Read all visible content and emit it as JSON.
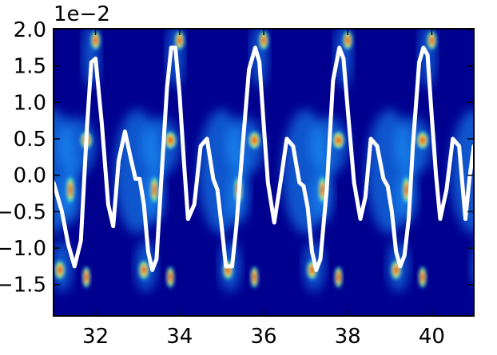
{
  "chart_data": {
    "type": "heatmap",
    "title": "",
    "xlabel": "",
    "ylabel": "",
    "y_exponent_label": "1e−2",
    "xlim": [
      31.0,
      41.0
    ],
    "ylim": [
      -0.0193,
      0.0201
    ],
    "x_ticks": [
      32,
      34,
      36,
      38,
      40
    ],
    "x_tick_labels": [
      "32",
      "34",
      "36",
      "38",
      "40"
    ],
    "y_ticks": [
      -0.015,
      -0.01,
      -0.005,
      0.0,
      0.005,
      0.01,
      0.015,
      0.02
    ],
    "y_tick_labels": [
      "−1.5",
      "−1.0",
      "−0.5",
      "0.0",
      "0.5",
      "1.0",
      "1.5",
      "2.0"
    ],
    "grid": false,
    "colormap": "jet",
    "heatmap_background": "#00008f",
    "curve_color": "#ffffff",
    "period": 2.0,
    "series": [
      {
        "x": [
          31.0,
          31.2,
          31.35,
          31.5,
          31.65,
          31.8,
          31.9,
          32.0,
          32.15,
          32.3,
          32.42,
          32.55,
          32.7,
          32.85,
          32.95,
          33.05,
          33.15,
          33.25,
          33.35,
          33.45,
          33.55,
          33.7,
          33.8,
          33.9,
          34.0,
          34.1,
          34.2,
          34.35,
          34.5,
          34.65,
          34.8,
          34.9,
          35.0,
          35.1,
          35.25,
          35.35,
          35.5,
          35.65,
          35.8,
          35.9,
          36.0,
          36.1,
          36.25,
          36.4,
          36.55,
          36.7,
          36.85,
          36.95,
          37.05,
          37.15,
          37.25,
          37.35,
          37.5,
          37.65,
          37.8,
          37.9,
          38.0,
          38.15,
          38.3,
          38.42,
          38.55,
          38.7,
          38.85,
          38.95,
          39.05,
          39.15,
          39.25,
          39.35,
          39.45,
          39.55,
          39.7,
          39.8,
          39.9,
          40.0,
          40.1,
          40.2,
          40.35,
          40.5,
          40.65,
          40.8,
          40.9,
          41.0
        ],
        "y": [
          -0.001,
          -0.005,
          -0.0095,
          -0.0125,
          -0.009,
          0.007,
          0.0155,
          0.016,
          0.007,
          -0.004,
          -0.007,
          0.002,
          0.006,
          0.002,
          -0.0005,
          -0.0005,
          -0.004,
          -0.0105,
          -0.013,
          -0.0115,
          -0.002,
          0.012,
          0.0175,
          0.0175,
          0.011,
          0.002,
          -0.006,
          -0.004,
          0.004,
          0.005,
          -0.0005,
          -0.002,
          -0.007,
          -0.0125,
          -0.0125,
          -0.007,
          0.004,
          0.0145,
          0.0175,
          0.0155,
          0.007,
          -0.001,
          -0.0065,
          -0.001,
          0.005,
          0.004,
          -0.001,
          -0.0015,
          -0.0045,
          -0.0105,
          -0.013,
          -0.0115,
          -0.002,
          0.013,
          0.0175,
          0.016,
          0.009,
          -0.001,
          -0.006,
          -0.003,
          0.005,
          0.004,
          -0.0005,
          -0.0015,
          -0.005,
          -0.0105,
          -0.0125,
          -0.011,
          -0.006,
          0.004,
          0.0155,
          0.0175,
          0.0165,
          0.008,
          0.0,
          -0.006,
          -0.002,
          0.005,
          0.004,
          -0.006,
          -0.0003,
          0.004
        ]
      }
    ]
  }
}
